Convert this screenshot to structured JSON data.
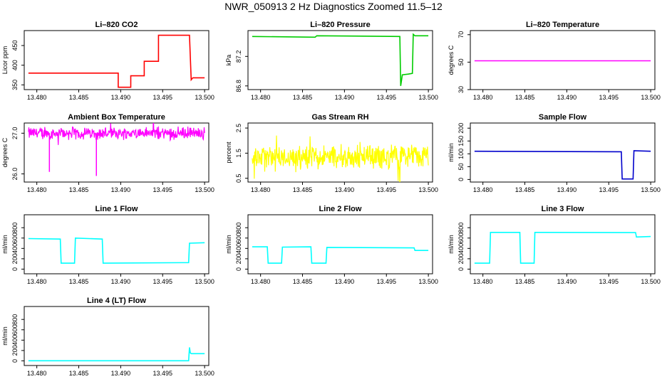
{
  "page": {
    "title": "NWR_050913  2 Hz Diagnostics Zoomed 11.5–12"
  },
  "colors": {
    "axis": "#000000",
    "red": "#ff0000",
    "green": "#00cc00",
    "magenta": "#ff00ff",
    "yellow": "#ffff00",
    "blue": "#0000cc",
    "cyan": "#00ffff"
  },
  "chart_data": [
    {
      "type": "line",
      "title": "Li–820 CO2",
      "ylabel": "Licor ppm",
      "color": "#ff0000",
      "xlim": [
        13.4785,
        13.5005
      ],
      "ylim": [
        338,
        488
      ],
      "xticks": [
        "13.480",
        "13.485",
        "13.490",
        "13.495",
        "13.500"
      ],
      "yticks": [
        "350",
        "400",
        "450"
      ],
      "series": [
        {
          "x": [
            13.479,
            13.4897,
            13.4897,
            13.4912,
            13.4912,
            13.4928,
            13.4928,
            13.4945,
            13.4945,
            13.4982,
            13.4984,
            13.4986,
            13.5
          ],
          "y": [
            380,
            380,
            344,
            344,
            373,
            373,
            410,
            410,
            476,
            476,
            363,
            368,
            368
          ]
        }
      ]
    },
    {
      "type": "line",
      "title": "Li–820 Pressure",
      "ylabel": "kPa",
      "color": "#00cc00",
      "xlim": [
        13.4785,
        13.5005
      ],
      "ylim": [
        86.75,
        87.55
      ],
      "xticks": [
        "13.480",
        "13.485",
        "13.490",
        "13.495",
        "13.500"
      ],
      "yticks": [
        "86.8",
        "87.2"
      ],
      "series": [
        {
          "x": [
            13.479,
            13.4865,
            13.4867,
            13.4966,
            13.4967,
            13.4969,
            13.4976,
            13.4981,
            13.4982,
            13.4984,
            13.5
          ],
          "y": [
            87.47,
            87.46,
            87.48,
            87.47,
            86.8,
            86.95,
            86.96,
            86.97,
            87.5,
            87.48,
            87.48
          ]
        }
      ]
    },
    {
      "type": "line",
      "title": "Li–820 Temperature",
      "ylabel": "degrees C",
      "color": "#ff00ff",
      "xlim": [
        13.4785,
        13.5005
      ],
      "ylim": [
        30,
        73
      ],
      "xticks": [
        "13.480",
        "13.485",
        "13.490",
        "13.495",
        "13.500"
      ],
      "yticks": [
        "30",
        "50",
        "70"
      ],
      "series": [
        {
          "x": [
            13.479,
            13.5
          ],
          "y": [
            51,
            51
          ]
        }
      ]
    },
    {
      "type": "line",
      "title": "Ambient Box Temperature",
      "ylabel": "degrees C",
      "color": "#ff00ff",
      "xlim": [
        13.4785,
        13.5005
      ],
      "ylim": [
        25.8,
        27.25
      ],
      "xticks": [
        "13.480",
        "13.485",
        "13.490",
        "13.495",
        "13.500"
      ],
      "yticks": [
        "26.0",
        "27.0"
      ],
      "series": [
        {
          "x": [
            13.479,
            13.4814,
            13.4815,
            13.4816,
            13.487,
            13.4871,
            13.4872,
            13.5
          ],
          "y": [
            27.0,
            27.0,
            26.05,
            27.0,
            27.0,
            25.95,
            27.0,
            27.0
          ]
        }
      ]
    },
    {
      "type": "line",
      "title": "Gas Stream RH",
      "ylabel": "percent",
      "color": "#ffff00",
      "xlim": [
        13.4785,
        13.5005
      ],
      "ylim": [
        0.35,
        2.7
      ],
      "xticks": [
        "13.480",
        "13.485",
        "13.490",
        "13.495",
        "13.500"
      ],
      "yticks": [
        "0.5",
        "1.5",
        "2.5"
      ],
      "series": [
        {
          "x": [
            13.479,
            13.5
          ],
          "y": [
            1.35,
            1.35
          ]
        }
      ]
    },
    {
      "type": "line",
      "title": "Sample Flow",
      "ylabel": "ml/min",
      "color": "#0000cc",
      "xlim": [
        13.4785,
        13.5005
      ],
      "ylim": [
        -10,
        220
      ],
      "xticks": [
        "13.480",
        "13.485",
        "13.490",
        "13.495",
        "13.500"
      ],
      "yticks": [
        "0",
        "50",
        "100",
        "150",
        "200"
      ],
      "series": [
        {
          "x": [
            13.479,
            13.4965,
            13.4966,
            13.4979,
            13.498,
            13.5
          ],
          "y": [
            110,
            108,
            2,
            2,
            112,
            110
          ]
        }
      ]
    },
    {
      "type": "line",
      "title": "Line 1 Flow",
      "ylabel": "ml/min",
      "color": "#00ffff",
      "xlim": [
        13.4785,
        13.5005
      ],
      "ylim": [
        -90,
        1050
      ],
      "xticks": [
        "13.480",
        "13.485",
        "13.490",
        "13.495",
        "13.500"
      ],
      "yticks": [
        "0",
        "200",
        "400",
        "600",
        "800"
      ],
      "series": [
        {
          "x": [
            13.479,
            13.4828,
            13.4829,
            13.4845,
            13.4846,
            13.4878,
            13.4879,
            13.4981,
            13.4982,
            13.5
          ],
          "y": [
            590,
            580,
            115,
            115,
            600,
            580,
            115,
            125,
            500,
            510
          ]
        }
      ]
    },
    {
      "type": "line",
      "title": "Line 2 Flow",
      "ylabel": "ml/min",
      "color": "#00ffff",
      "xlim": [
        13.4785,
        13.5005
      ],
      "ylim": [
        -90,
        1050
      ],
      "xticks": [
        "13.480",
        "13.485",
        "13.490",
        "13.495",
        "13.500"
      ],
      "yticks": [
        "0",
        "200",
        "400",
        "600",
        "800"
      ],
      "series": [
        {
          "x": [
            13.479,
            13.4808,
            13.4809,
            13.4825,
            13.4826,
            13.486,
            13.4861,
            13.4878,
            13.4879,
            13.4983,
            13.4984,
            13.5
          ],
          "y": [
            430,
            430,
            115,
            115,
            425,
            430,
            115,
            115,
            420,
            410,
            360,
            360
          ]
        }
      ]
    },
    {
      "type": "line",
      "title": "Line 3 Flow",
      "ylabel": "ml/min",
      "color": "#00ffff",
      "xlim": [
        13.4785,
        13.5005
      ],
      "ylim": [
        -90,
        1050
      ],
      "xticks": [
        "13.480",
        "13.485",
        "13.490",
        "13.495",
        "13.500"
      ],
      "yticks": [
        "0",
        "200",
        "400",
        "600",
        "800"
      ],
      "series": [
        {
          "x": [
            13.479,
            13.4808,
            13.4809,
            13.4844,
            13.4845,
            13.4861,
            13.4862,
            13.4982,
            13.4983,
            13.5
          ],
          "y": [
            115,
            115,
            710,
            710,
            115,
            115,
            710,
            705,
            620,
            630
          ]
        }
      ]
    },
    {
      "type": "line",
      "title": "Line 4 (LT) Flow",
      "ylabel": "ml/min",
      "color": "#00ffff",
      "xlim": [
        13.4785,
        13.5005
      ],
      "ylim": [
        -90,
        1050
      ],
      "xticks": [
        "13.480",
        "13.485",
        "13.490",
        "13.495",
        "13.500"
      ],
      "yticks": [
        "0",
        "200",
        "400",
        "600",
        "800"
      ],
      "series": [
        {
          "x": [
            13.479,
            13.4981,
            13.4982,
            13.4983,
            13.4984,
            13.5
          ],
          "y": [
            2,
            2,
            260,
            155,
            140,
            140
          ]
        }
      ]
    }
  ]
}
